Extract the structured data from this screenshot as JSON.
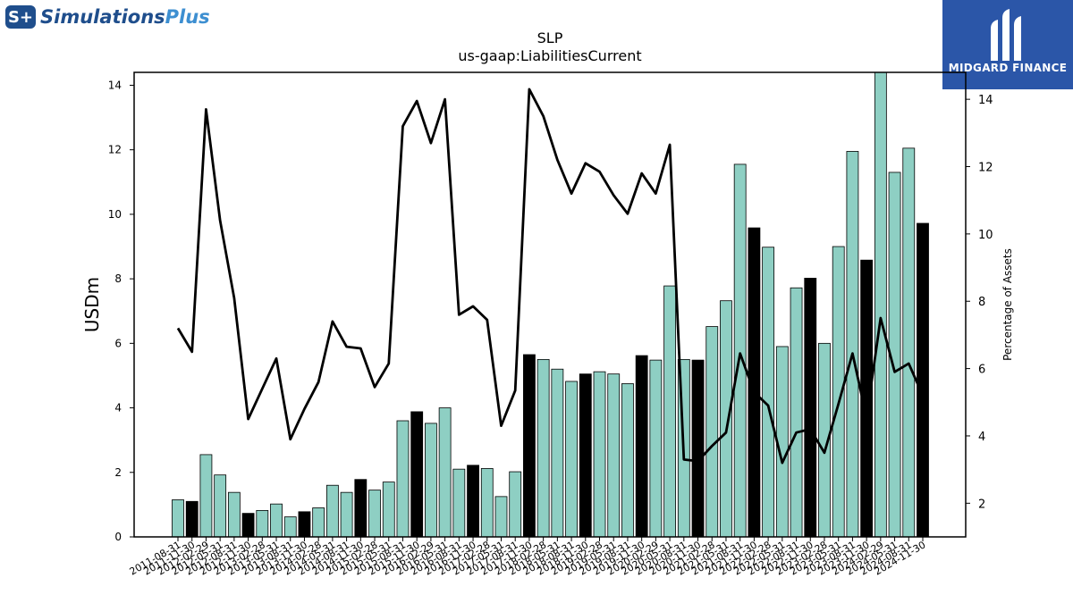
{
  "brand_left": {
    "mark": "S+",
    "name_main": "Simulations",
    "name_accent": "Plus"
  },
  "brand_right": {
    "name": "MIDGARD FINANCE"
  },
  "chart_data": {
    "type": "bar",
    "title": "SLP",
    "subtitle": "us-gaap:LiabilitiesCurrent",
    "ylabel": "USDm",
    "y2label": "Percentage of Assets",
    "ylim": [
      0,
      14.4
    ],
    "y2lim": [
      1.0,
      14.8
    ],
    "yticks": [
      0,
      2,
      4,
      6,
      8,
      10,
      12,
      14
    ],
    "y2ticks": [
      2,
      4,
      6,
      8,
      10,
      12,
      14
    ],
    "colors": {
      "bar": "#8ecfc3",
      "bar_highlight": "#000000",
      "line": "#000000"
    },
    "categories": [
      "2011-08-31",
      "2011-11-30",
      "2012-02-29",
      "2012-05-31",
      "2012-08-31",
      "2012-11-30",
      "2013-02-28",
      "2013-05-31",
      "2013-08-31",
      "2013-11-30",
      "2014-02-28",
      "2014-05-31",
      "2014-08-31",
      "2014-11-30",
      "2015-02-28",
      "2015-05-31",
      "2015-08-31",
      "2015-11-30",
      "2016-02-29",
      "2016-05-31",
      "2016-08-31",
      "2016-11-30",
      "2017-02-28",
      "2017-05-31",
      "2017-08-31",
      "2017-11-30",
      "2018-02-28",
      "2018-05-31",
      "2018-08-31",
      "2018-11-30",
      "2019-02-28",
      "2019-05-31",
      "2019-08-31",
      "2019-11-30",
      "2020-02-29",
      "2020-05-31",
      "2020-08-31",
      "2020-11-30",
      "2021-02-28",
      "2021-05-31",
      "2021-08-31",
      "2021-11-30",
      "2022-02-28",
      "2022-05-31",
      "2022-08-31",
      "2022-11-30",
      "2023-02-28",
      "2023-05-31",
      "2023-08-31",
      "2023-11-30",
      "2024-02-29",
      "2024-05-31",
      "2024-08-31",
      "2024-11-30"
    ],
    "series": [
      {
        "type": "bar",
        "values": [
          1.15,
          1.1,
          2.55,
          1.92,
          1.38,
          0.73,
          0.82,
          1.02,
          0.62,
          0.78,
          0.9,
          1.6,
          1.38,
          1.78,
          1.45,
          1.7,
          3.6,
          3.88,
          3.52,
          4.0,
          2.1,
          2.22,
          2.12,
          1.25,
          2.02,
          5.65,
          5.5,
          5.2,
          4.82,
          5.05,
          5.12,
          5.05,
          4.75,
          5.62,
          5.48,
          7.78,
          5.5,
          5.48,
          6.52,
          7.32,
          11.55,
          9.58,
          8.98,
          5.9,
          7.72,
          8.02,
          6.0,
          9.0,
          11.95,
          8.58,
          14.42,
          11.3,
          12.05,
          9.72
        ],
        "highlight": [
          false,
          true,
          false,
          false,
          false,
          true,
          false,
          false,
          false,
          true,
          false,
          false,
          false,
          true,
          false,
          false,
          false,
          true,
          false,
          false,
          false,
          true,
          false,
          false,
          false,
          true,
          false,
          false,
          false,
          true,
          false,
          false,
          false,
          true,
          false,
          false,
          false,
          true,
          false,
          false,
          false,
          true,
          false,
          false,
          false,
          true,
          false,
          false,
          false,
          true,
          false,
          false,
          false,
          true
        ]
      },
      {
        "type": "line",
        "axis": "y2",
        "values": [
          7.2,
          6.5,
          13.7,
          10.4,
          8.1,
          4.5,
          5.4,
          6.3,
          3.9,
          4.8,
          5.6,
          7.4,
          6.65,
          6.6,
          5.45,
          6.15,
          13.2,
          13.95,
          12.7,
          14.0,
          7.6,
          7.85,
          7.45,
          4.3,
          5.35,
          14.3,
          13.5,
          12.2,
          11.2,
          12.1,
          11.85,
          11.15,
          10.6,
          11.8,
          11.2,
          12.65,
          3.3,
          3.25,
          3.7,
          4.1,
          6.45,
          5.3,
          4.9,
          3.2,
          4.1,
          4.2,
          3.5,
          4.95,
          6.45,
          4.55,
          7.5,
          5.9,
          6.15,
          5.2
        ]
      }
    ]
  }
}
